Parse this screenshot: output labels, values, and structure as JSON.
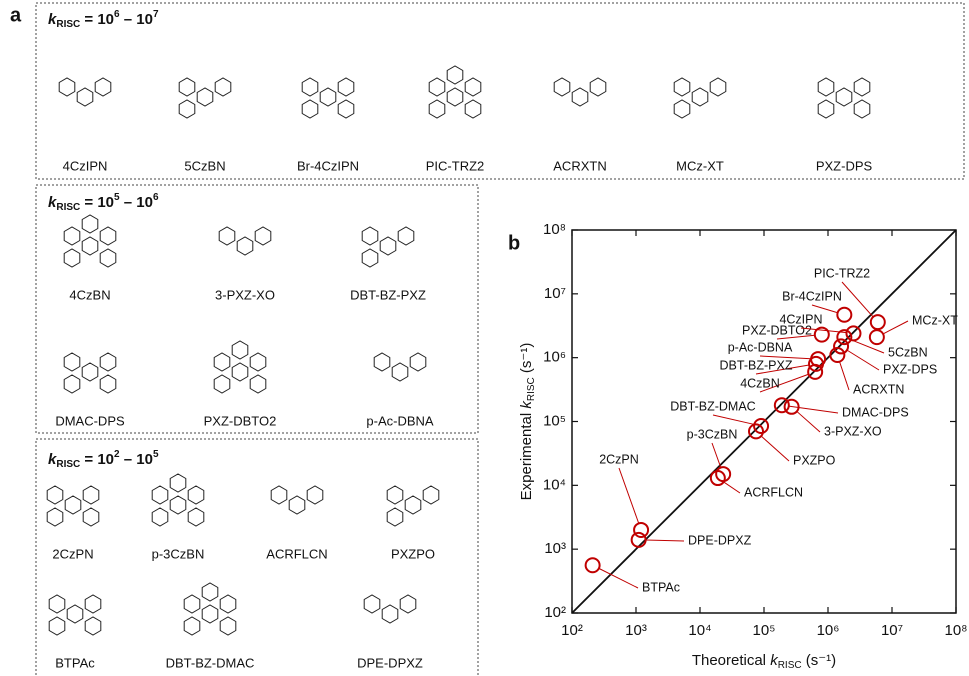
{
  "panel_a": {
    "label": "a",
    "groups": [
      {
        "heading": {
          "k": "k",
          "sub": "RISC",
          "eq": " = 10",
          "lo": "6",
          "dash": " – 10",
          "hi": "7"
        },
        "molecules": [
          "4CzIPN",
          "5CzBN",
          "Br-4CzIPN",
          "PIC-TRZ2",
          "ACRXTN",
          "MCz-XT",
          "PXZ-DPS"
        ]
      },
      {
        "heading": {
          "k": "k",
          "sub": "RISC",
          "eq": " = 10",
          "lo": "5",
          "dash": " – 10",
          "hi": "6"
        },
        "molecules": [
          "4CzBN",
          "3-PXZ-XO",
          "DBT-BZ-PXZ",
          "DMAC-DPS",
          "PXZ-DBTO2",
          "p-Ac-DBNA"
        ]
      },
      {
        "heading": {
          "k": "k",
          "sub": "RISC",
          "eq": " = 10",
          "lo": "2",
          "dash": " – 10",
          "hi": "5"
        },
        "molecules": [
          "2CzPN",
          "p-3CzBN",
          "ACRFLCN",
          "PXZPO",
          "BTPAc",
          "DBT-BZ-DMAC",
          "DPE-DPXZ"
        ]
      }
    ]
  },
  "chart_data": {
    "type": "scatter",
    "panel_label": "b",
    "xlabel": {
      "text": "Theoretical ",
      "k": "k",
      "sub": "RISC",
      "unit": " (s⁻¹)"
    },
    "ylabel": {
      "text": "Experimental ",
      "k": "k",
      "sub": "RISC",
      "unit": " (s⁻¹)"
    },
    "labels": [
      "BTPAc",
      "DPE-DPXZ",
      "2CzPN",
      "ACRFLCN",
      "p-3CzBN",
      "PXZPO",
      "DBT-BZ-DMAC",
      "DMAC-DPS",
      "3-PXZ-XO",
      "4CzBN",
      "DBT-BZ-PXZ",
      "p-Ac-DBNA",
      "ACRXTN",
      "PXZ-DBTO2",
      "PXZ-DPS",
      "5CzBN",
      "4CzIPN",
      "Br-4CzIPN",
      "PIC-TRZ2",
      "MCz-XT"
    ],
    "x": [
      210,
      1100,
      1200,
      19000,
      23000,
      75000,
      90000,
      190000,
      270000,
      630000,
      650000,
      700000,
      1400000,
      800000,
      1600000,
      1800000,
      2500000,
      1800000,
      6000000,
      5800000
    ],
    "values": [
      560,
      1400,
      2000,
      13000,
      15000,
      70000,
      85000,
      180000,
      170000,
      600000,
      800000,
      950000,
      1100000,
      2300000,
      1500000,
      2100000,
      2400000,
      4700000,
      3600000,
      2100000
    ],
    "color": "#c00000",
    "log_x": true,
    "log_y": true,
    "diagonal": true,
    "xlim": [
      100,
      100000000
    ],
    "ylim": [
      100,
      100000000
    ],
    "xticks": [
      {
        "value": 100,
        "label": "10²"
      },
      {
        "value": 1000,
        "label": "10³"
      },
      {
        "value": 10000,
        "label": "10⁴"
      },
      {
        "value": 100000,
        "label": "10⁵"
      },
      {
        "value": 1000000,
        "label": "10⁶"
      },
      {
        "value": 10000000,
        "label": "10⁷"
      },
      {
        "value": 100000000,
        "label": "10⁸"
      }
    ],
    "yticks": [
      {
        "value": 100,
        "label": "10²"
      },
      {
        "value": 1000,
        "label": "10³"
      },
      {
        "value": 10000,
        "label": "10⁴"
      },
      {
        "value": 100000,
        "label": "10⁵"
      },
      {
        "value": 1000000,
        "label": "10⁶"
      },
      {
        "value": 10000000,
        "label": "10⁷"
      },
      {
        "value": 100000000,
        "label": "10⁸"
      }
    ]
  }
}
